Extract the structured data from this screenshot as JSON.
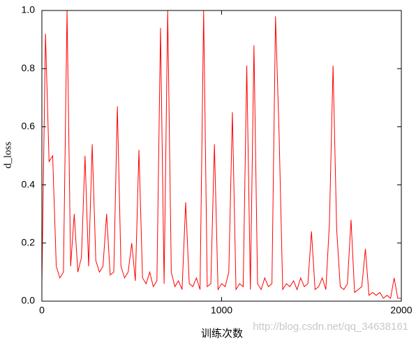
{
  "chart_data": {
    "type": "line",
    "ylabel": "d_loss",
    "xlabel": "训练次数",
    "annotation": "http://blog.csdn.net/qq_34638161",
    "color": "#ff0000",
    "x": [
      0,
      20,
      40,
      60,
      80,
      100,
      120,
      140,
      160,
      180,
      200,
      220,
      240,
      260,
      280,
      300,
      320,
      340,
      360,
      380,
      400,
      420,
      440,
      460,
      480,
      500,
      520,
      540,
      560,
      580,
      600,
      620,
      640,
      660,
      680,
      700,
      720,
      740,
      760,
      780,
      800,
      820,
      840,
      860,
      880,
      900,
      920,
      940,
      960,
      980,
      1000,
      1020,
      1040,
      1060,
      1080,
      1100,
      1120,
      1140,
      1160,
      1180,
      1200,
      1220,
      1240,
      1260,
      1280,
      1300,
      1320,
      1340,
      1360,
      1380,
      1400,
      1420,
      1440,
      1460,
      1480,
      1500,
      1520,
      1540,
      1560,
      1580,
      1600,
      1620,
      1640,
      1660,
      1680,
      1700,
      1720,
      1740,
      1760,
      1780,
      1800,
      1820,
      1840,
      1860,
      1880,
      1900,
      1920,
      1940,
      1960,
      1980,
      2000
    ],
    "values": [
      0.06,
      0.92,
      0.48,
      0.5,
      0.12,
      0.08,
      0.1,
      1.0,
      0.12,
      0.3,
      0.1,
      0.15,
      0.5,
      0.12,
      0.54,
      0.14,
      0.1,
      0.12,
      0.3,
      0.09,
      0.1,
      0.67,
      0.12,
      0.08,
      0.1,
      0.2,
      0.07,
      0.52,
      0.08,
      0.06,
      0.1,
      0.05,
      0.07,
      0.94,
      0.06,
      1.0,
      0.1,
      0.05,
      0.07,
      0.04,
      0.34,
      0.06,
      0.05,
      0.08,
      0.04,
      1.0,
      0.05,
      0.06,
      0.54,
      0.04,
      0.06,
      0.05,
      0.1,
      0.65,
      0.04,
      0.06,
      0.05,
      0.81,
      0.04,
      0.88,
      0.06,
      0.04,
      0.08,
      0.05,
      0.06,
      0.98,
      0.57,
      0.04,
      0.06,
      0.05,
      0.07,
      0.04,
      0.08,
      0.05,
      0.06,
      0.24,
      0.04,
      0.05,
      0.08,
      0.04,
      0.27,
      0.81,
      0.25,
      0.05,
      0.04,
      0.06,
      0.28,
      0.03,
      0.04,
      0.05,
      0.18,
      0.02,
      0.03,
      0.02,
      0.03,
      0.01,
      0.02,
      0.01,
      0.08,
      0.01,
      0.01
    ],
    "xlim": [
      0,
      2000
    ],
    "xticks": [
      0,
      1000,
      2000
    ],
    "ylim": [
      0,
      1.0
    ],
    "yticks": [
      {
        "value": 0,
        "label": "0.0"
      },
      {
        "value": 0.2,
        "label": "0.2"
      },
      {
        "value": 0.4,
        "label": "0.4"
      },
      {
        "value": 0.6,
        "label": "0.6"
      },
      {
        "value": 0.8,
        "label": "0.8"
      },
      {
        "value": 1.0,
        "label": "1.0"
      }
    ]
  }
}
